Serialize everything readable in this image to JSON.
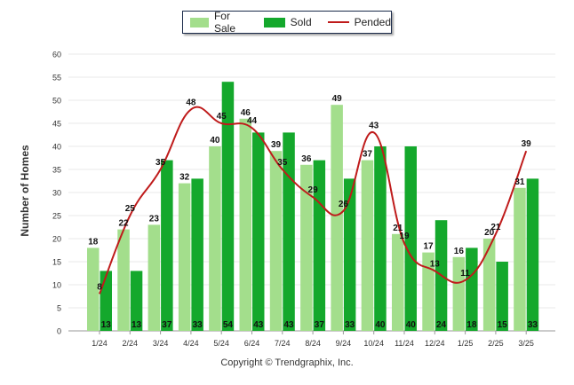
{
  "legend": {
    "for_sale": "For Sale",
    "sold": "Sold",
    "pended": "Pended"
  },
  "copyright": "Copyright © Trendgraphix, Inc.",
  "colors": {
    "for_sale": "#a3de8c",
    "sold": "#14a82c",
    "pended": "#bf1b1b"
  },
  "chart_data": {
    "type": "bar",
    "ylabel": "Number of Homes",
    "ylim": [
      0,
      60
    ],
    "yticks": [
      0,
      5,
      10,
      15,
      20,
      25,
      30,
      35,
      40,
      45,
      50,
      55,
      60
    ],
    "grid": true,
    "legend_position": "top-center",
    "categories": [
      "1/24",
      "2/24",
      "3/24",
      "4/24",
      "5/24",
      "6/24",
      "7/24",
      "8/24",
      "9/24",
      "10/24",
      "11/24",
      "12/24",
      "1/25",
      "2/25",
      "3/25"
    ],
    "series": [
      {
        "name": "For Sale",
        "type": "bar",
        "values": [
          18,
          22,
          23,
          32,
          40,
          46,
          39,
          36,
          49,
          37,
          21,
          17,
          16,
          20,
          31
        ]
      },
      {
        "name": "Sold",
        "type": "bar",
        "values": [
          13,
          13,
          37,
          33,
          54,
          43,
          43,
          37,
          33,
          40,
          40,
          24,
          18,
          15,
          33
        ]
      },
      {
        "name": "Pended",
        "type": "line",
        "values": [
          8,
          25,
          35,
          48,
          45,
          44,
          35,
          29,
          26,
          43,
          19,
          13,
          11,
          21,
          39
        ]
      }
    ]
  }
}
